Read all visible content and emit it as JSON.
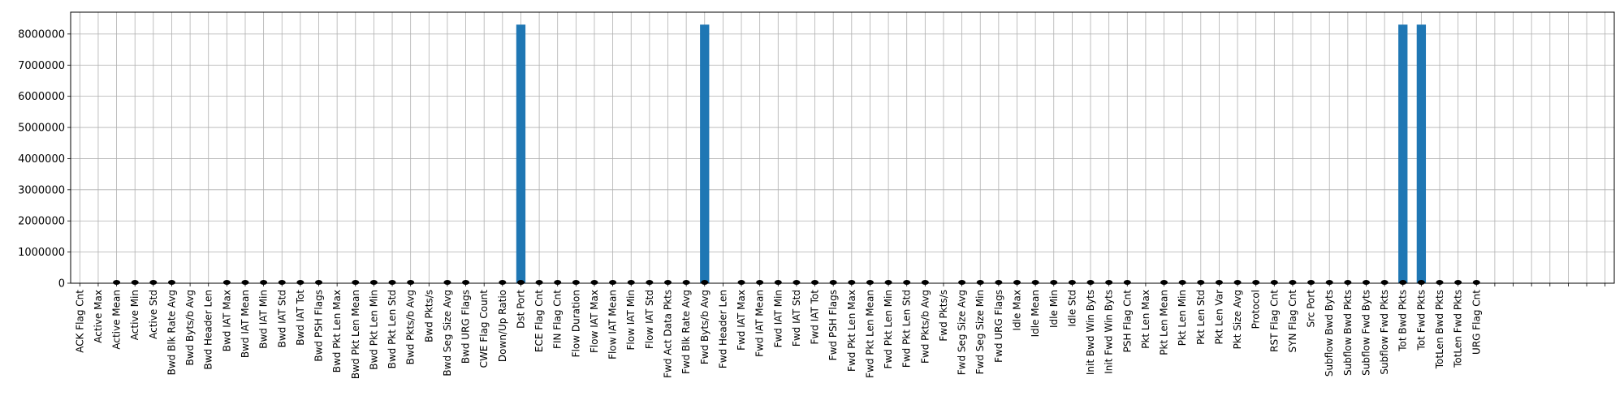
{
  "chart_data": {
    "type": "bar",
    "title": "",
    "xlabel": "",
    "ylabel": "",
    "ylim": [
      0,
      8700000
    ],
    "yticks": [
      0,
      1000000,
      2000000,
      3000000,
      4000000,
      5000000,
      6000000,
      7000000,
      8000000
    ],
    "ytick_labels": [
      "0",
      "1000000",
      "2000000",
      "3000000",
      "4000000",
      "5000000",
      "6000000",
      "7000000",
      "8000000"
    ],
    "grid": true,
    "bar_color": "#1f77b4",
    "marker_color": "#000000",
    "categories": [
      "ACK Flag Cnt",
      "Active Max",
      "Active Mean",
      "Active Min",
      "Active Std",
      "Bwd Blk Rate Avg",
      "Bwd Byts/b Avg",
      "Bwd Header Len",
      "Bwd IAT Max",
      "Bwd IAT Mean",
      "Bwd IAT Min",
      "Bwd IAT Std",
      "Bwd IAT Tot",
      "Bwd PSH Flags",
      "Bwd Pkt Len Max",
      "Bwd Pkt Len Mean",
      "Bwd Pkt Len Min",
      "Bwd Pkt Len Std",
      "Bwd Pkts/b Avg",
      "Bwd Pkts/s",
      "Bwd Seg Size Avg",
      "Bwd URG Flags",
      "CWE Flag Count",
      "Down/Up Ratio",
      "Dst Port",
      "ECE Flag Cnt",
      "FIN Flag Cnt",
      "Flow Duration",
      "Flow IAT Max",
      "Flow IAT Mean",
      "Flow IAT Min",
      "Flow IAT Std",
      "Fwd Act Data Pkts",
      "Fwd Blk Rate Avg",
      "Fwd Byts/b Avg",
      "Fwd Header Len",
      "Fwd IAT Max",
      "Fwd IAT Mean",
      "Fwd IAT Min",
      "Fwd IAT Std",
      "Fwd IAT Tot",
      "Fwd PSH Flags",
      "Fwd Pkt Len Max",
      "Fwd Pkt Len Mean",
      "Fwd Pkt Len Min",
      "Fwd Pkt Len Std",
      "Fwd Pkts/b Avg",
      "Fwd Pkts/s",
      "Fwd Seg Size Avg",
      "Fwd Seg Size Min",
      "Fwd URG Flags",
      "Idle Max",
      "Idle Mean",
      "Idle Min",
      "Idle Std",
      "Init Bwd Win Byts",
      "Init Fwd Win Byts",
      "PSH Flag Cnt",
      "Pkt Len Max",
      "Pkt Len Mean",
      "Pkt Len Min",
      "Pkt Len Std",
      "Pkt Len Var",
      "Pkt Size Avg",
      "Protocol",
      "RST Flag Cnt",
      "SYN Flag Cnt",
      "Src Port",
      "Subflow Bwd Byts",
      "Subflow Bwd Pkts",
      "Subflow Fwd Byts",
      "Subflow Fwd Pkts",
      "Tot Bwd Pkts",
      "Tot Fwd Pkts",
      "TotLen Bwd Pkts",
      "TotLen Fwd Pkts",
      "URG Flag Cnt",
      "",
      "",
      "",
      "",
      "",
      "",
      ""
    ],
    "values": [
      0,
      0,
      0,
      0,
      0,
      0,
      0,
      0,
      0,
      0,
      0,
      0,
      0,
      0,
      0,
      0,
      0,
      0,
      0,
      0,
      0,
      0,
      0,
      0,
      8300000,
      0,
      0,
      0,
      0,
      0,
      0,
      0,
      0,
      0,
      8300000,
      0,
      0,
      0,
      0,
      0,
      0,
      0,
      0,
      0,
      0,
      0,
      0,
      0,
      0,
      0,
      0,
      0,
      0,
      0,
      0,
      0,
      0,
      0,
      0,
      0,
      0,
      0,
      0,
      0,
      0,
      0,
      0,
      0,
      0,
      0,
      0,
      0,
      8300000,
      8300000,
      0,
      0,
      0,
      0,
      0,
      0,
      0,
      0,
      0,
      0
    ],
    "markers": [
      0,
      0,
      1,
      1,
      1,
      1,
      0,
      0,
      1,
      1,
      1,
      1,
      1,
      1,
      0,
      1,
      1,
      1,
      1,
      0,
      1,
      1,
      0,
      1,
      1,
      1,
      1,
      1,
      1,
      1,
      1,
      1,
      1,
      1,
      1,
      0,
      1,
      1,
      1,
      1,
      1,
      1,
      1,
      1,
      1,
      1,
      1,
      0,
      1,
      1,
      1,
      1,
      1,
      1,
      1,
      1,
      1,
      1,
      0,
      1,
      1,
      1,
      1,
      1,
      1,
      1,
      1,
      1,
      1,
      1,
      1,
      1,
      1,
      1,
      1,
      1,
      1,
      0,
      0,
      0,
      0,
      0,
      0,
      0
    ]
  }
}
